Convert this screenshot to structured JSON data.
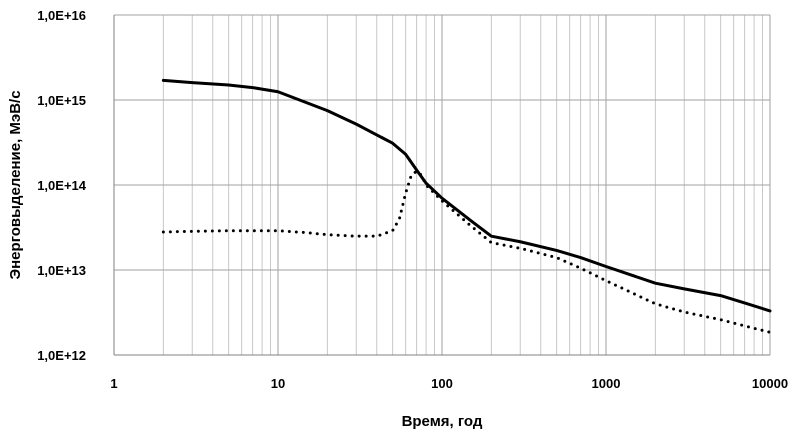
{
  "chart_data": {
    "type": "line",
    "x_scale": "log",
    "y_scale": "log",
    "xlim": [
      1,
      10000
    ],
    "ylim": [
      1000000000000.0,
      1e+16
    ],
    "xlabel": "Время, год",
    "ylabel": "Энерговыделение, МэВ/с",
    "x_ticks": [
      "1",
      "10",
      "100",
      "1000",
      "10000"
    ],
    "y_ticks": [
      "1,0E+12",
      "1,0E+13",
      "1,0E+14",
      "1,0E+15",
      "1,0E+16"
    ],
    "grid": "major and minor vertical, major horizontal",
    "legend": "none",
    "series": [
      {
        "style": "solid",
        "color": "#000000",
        "x": [
          2,
          3,
          5,
          7,
          10,
          20,
          30,
          50,
          60,
          70,
          80,
          100,
          150,
          200,
          250,
          300,
          500,
          700,
          1000,
          2000,
          3000,
          5000,
          7000,
          10000
        ],
        "y": [
          1700000000000000.0,
          1600000000000000.0,
          1500000000000000.0,
          1400000000000000.0,
          1250000000000000.0,
          750000000000000.0,
          520000000000000.0,
          310000000000000.0,
          230000000000000.0,
          150000000000000.0,
          105000000000000.0,
          70000000000000.0,
          38000000000000.0,
          25000000000000.0,
          23000000000000.0,
          21500000000000.0,
          17000000000000.0,
          14000000000000.0,
          11000000000000.0,
          7000000000000.0,
          6000000000000.0,
          5000000000000.0,
          4100000000000.0,
          3300000000000.0
        ]
      },
      {
        "style": "dotted",
        "color": "#000000",
        "x": [
          2,
          3,
          5,
          7,
          10,
          15,
          20,
          30,
          40,
          50,
          55,
          60,
          65,
          70,
          75,
          80,
          100,
          150,
          200,
          300,
          500,
          700,
          1000,
          2000,
          3000,
          5000,
          7000,
          10000
        ],
        "y": [
          28000000000000.0,
          28500000000000.0,
          29000000000000.0,
          29000000000000.0,
          29000000000000.0,
          27500000000000.0,
          26000000000000.0,
          25000000000000.0,
          25000000000000.0,
          29000000000000.0,
          40000000000000.0,
          80000000000000.0,
          130000000000000.0,
          145000000000000.0,
          130000000000000.0,
          100000000000000.0,
          65000000000000.0,
          33000000000000.0,
          21000000000000.0,
          18000000000000.0,
          14000000000000.0,
          10500000000000.0,
          7500000000000.0,
          4000000000000.0,
          3200000000000.0,
          2600000000000.0,
          2200000000000.0,
          1850000000000.0
        ]
      }
    ]
  }
}
